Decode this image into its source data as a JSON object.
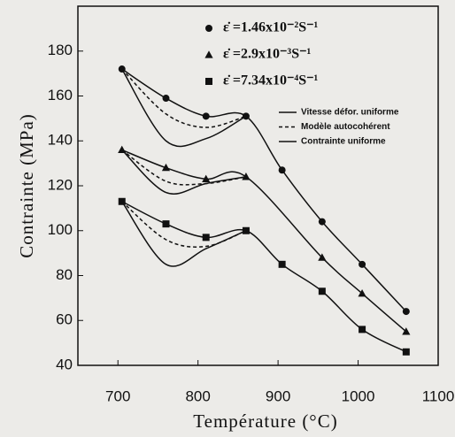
{
  "chart_data": {
    "type": "line",
    "xlabel": "Température (°C)",
    "ylabel": "Contrainte (MPa)",
    "xlim": [
      650,
      1100
    ],
    "xticks": [
      700,
      800,
      900,
      1000,
      1100
    ],
    "ylim": [
      40,
      200
    ],
    "yticks": [
      40,
      60,
      80,
      100,
      120,
      140,
      160,
      180
    ],
    "series": [
      {
        "name": "ε̇ =1.46x10⁻²S⁻¹",
        "marker": "circle",
        "color": "#111111",
        "x": [
          705,
          760,
          810,
          860,
          905,
          955,
          1005,
          1060
        ],
        "values": [
          172,
          159,
          151,
          151,
          127,
          104,
          85,
          64
        ]
      },
      {
        "name": "ε̇ =2.9x10⁻³S⁻¹",
        "marker": "triangle",
        "color": "#111111",
        "x": [
          705,
          760,
          810,
          860,
          955,
          1005,
          1060
        ],
        "values": [
          136,
          128,
          123,
          124,
          88,
          72,
          55
        ]
      },
      {
        "name": "ε̇ =7.34x10⁻⁴S⁻¹",
        "marker": "square",
        "color": "#111111",
        "x": [
          705,
          760,
          810,
          860,
          905,
          955,
          1005,
          1060
        ],
        "values": [
          113,
          103,
          97,
          100,
          85,
          73,
          56,
          46
        ]
      }
    ],
    "line_legend": [
      {
        "name": "Vitesse défor. uniforme",
        "dash": "none",
        "curves": [
          {
            "x": [
              705,
              760,
              810,
              860,
              905,
              955,
              1005,
              1060
            ],
            "values": [
              172,
              159,
              151,
              151,
              127,
              104,
              85,
              64
            ]
          },
          {
            "x": [
              705,
              760,
              810,
              860,
              955,
              1005,
              1060
            ],
            "values": [
              136,
              128,
              123,
              124,
              88,
              72,
              55
            ]
          },
          {
            "x": [
              705,
              760,
              810,
              860,
              905,
              955,
              1005,
              1060
            ],
            "values": [
              113,
              103,
              97,
              100,
              85,
              73,
              56,
              46
            ]
          }
        ]
      },
      {
        "name": "Modèle autocohérent",
        "dash": "4 3",
        "curves": [
          {
            "x": [
              705,
              760,
              810,
              860
            ],
            "values": [
              172,
              152,
              146,
              151
            ]
          },
          {
            "x": [
              705,
              760,
              810,
              860
            ],
            "values": [
              136,
              122,
              121,
              124
            ]
          },
          {
            "x": [
              705,
              760,
              810,
              860
            ],
            "values": [
              113,
              96,
              93,
              100
            ]
          }
        ]
      },
      {
        "name": "Contrainte uniforme",
        "dash": "none",
        "curves": [
          {
            "x": [
              705,
              760,
              810,
              860
            ],
            "values": [
              172,
              140,
              141,
              151
            ]
          },
          {
            "x": [
              705,
              760,
              810,
              860
            ],
            "values": [
              136,
              117,
              121,
              124
            ]
          },
          {
            "x": [
              705,
              760,
              810,
              860
            ],
            "values": [
              113,
              85,
              92,
              100
            ]
          }
        ]
      }
    ]
  }
}
